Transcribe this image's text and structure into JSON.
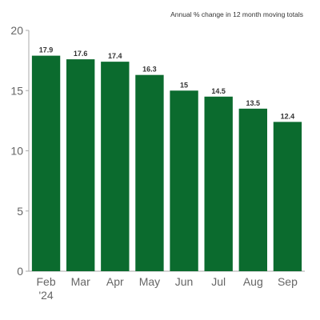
{
  "chart_data": {
    "type": "bar",
    "title": "",
    "subtitle": "Annual % change in 12 month moving totals",
    "xlabel": "",
    "ylabel": "",
    "categories": [
      "Feb",
      "Mar",
      "Apr",
      "May",
      "Jun",
      "Jul",
      "Aug",
      "Sep"
    ],
    "category_sublabels": [
      "'24",
      "",
      "",
      "",
      "",
      "",
      "",
      ""
    ],
    "values": [
      17.9,
      17.6,
      17.4,
      16.3,
      15,
      14.5,
      13.5,
      12.4
    ],
    "value_labels": [
      "17.9",
      "17.6",
      "17.4",
      "16.3",
      "15",
      "14.5",
      "13.5",
      "12.4"
    ],
    "ylim": [
      0,
      20
    ],
    "yticks": [
      0,
      5,
      10,
      15,
      20
    ],
    "ytick_labels": [
      "0",
      "5",
      "10",
      "15",
      "20"
    ],
    "grid": false,
    "legend": "none",
    "colors": {
      "bar": "#0b6b2e",
      "axis": "#aaaaaa",
      "text": "#333333",
      "tick_text": "#666666"
    }
  }
}
